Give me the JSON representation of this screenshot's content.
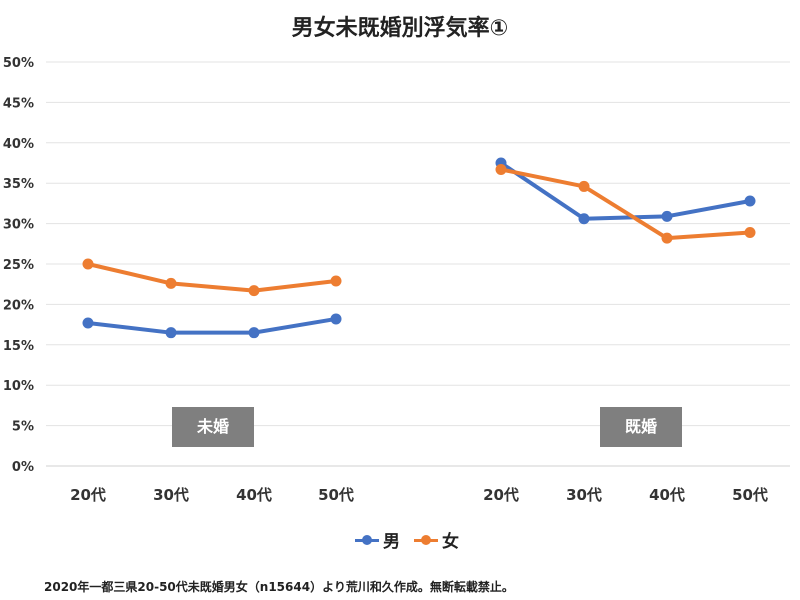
{
  "chart_data": {
    "type": "line",
    "title": "男女未既婚別浮気率①",
    "xlabel": "",
    "ylabel": "",
    "ylim": [
      0,
      50
    ],
    "yticks": [
      "0%",
      "5%",
      "10%",
      "15%",
      "20%",
      "25%",
      "30%",
      "35%",
      "40%",
      "45%",
      "50%"
    ],
    "grid": true,
    "groups": [
      {
        "name": "未婚",
        "categories": [
          "20代",
          "30代",
          "40代",
          "50代"
        ],
        "series": [
          {
            "name": "男",
            "values": [
              17.7,
              16.5,
              16.5,
              18.2
            ]
          },
          {
            "name": "女",
            "values": [
              25.0,
              22.6,
              21.7,
              22.9
            ]
          }
        ]
      },
      {
        "name": "既婚",
        "categories": [
          "20代",
          "30代",
          "40代",
          "50代"
        ],
        "series": [
          {
            "name": "男",
            "values": [
              37.5,
              30.6,
              30.9,
              32.8
            ]
          },
          {
            "name": "女",
            "values": [
              36.7,
              34.6,
              28.2,
              28.9
            ]
          }
        ]
      }
    ],
    "legend": [
      "男",
      "女"
    ],
    "legend_position": "bottom",
    "colors": {
      "男": "#4472C4",
      "女": "#ED7D31"
    }
  },
  "footnote": "2020年一都三県20-50代未既婚男女（n15644）より荒川和久作成。無断転載禁止。"
}
